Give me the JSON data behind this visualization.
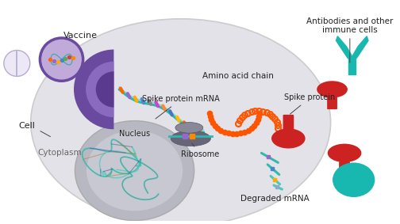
{
  "bg_color": "#ffffff",
  "cell_fill": "#e2e2e8",
  "cell_edge": "#cccccc",
  "nucleus_fill": "#b8b8c2",
  "nucleus_inner_fill": "#c8c8d2",
  "vaccine_purple_dark": "#6a4a9e",
  "vaccine_purple_mid": "#8a6abe",
  "vaccine_purple_light": "#c0aada",
  "mrna_teal": "#2ab8b0",
  "mrna_teal2": "#50d0c8",
  "text_color": "#222222",
  "ribosome_dark": "#666677",
  "ribosome_light": "#888899",
  "spike_red": "#cc2222",
  "antibody_teal": "#18b8b0",
  "labels": {
    "vaccine": "Vaccine",
    "cell": "Cell",
    "cytoplasm": "Cytoplasm",
    "mrna": "Spike protein mRNA",
    "ribosome": "Ribosome",
    "amino_acid": "Amino acid chain",
    "degraded": "Degraded mRNA",
    "spike": "Spike protein",
    "antibodies": "Antibodies and other\nimmune cells",
    "nucleus": "Nucleus"
  },
  "base_colors": [
    "#ff6600",
    "#9966cc",
    "#ffaa00",
    "#5588cc",
    "#888888",
    "#cc44cc",
    "#ff8833",
    "#4477bb",
    "#ffbb00"
  ],
  "vaccine_dot_colors": [
    "#ff6600",
    "#9966cc",
    "#ffaa00",
    "#4488cc",
    "#55aa55",
    "#cc4444",
    "#ff8800"
  ]
}
